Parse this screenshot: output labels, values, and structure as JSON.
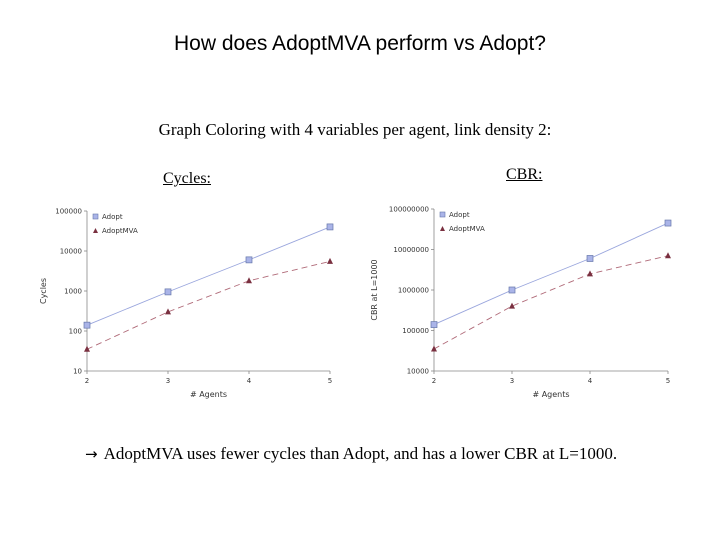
{
  "slide": {
    "title": "How does AdoptMVA perform vs Adopt?",
    "subtitle": "Graph Coloring with 4 variables per agent, link density 2:",
    "conclusion_arrow": "→",
    "conclusion": "AdoptMVA uses fewer cycles than Adopt, and has a lower CBR at L=1000."
  },
  "panels": {
    "cycles_label": "Cycles:",
    "cbr_label": "CBR:"
  },
  "colors": {
    "adopt": "#8899cc",
    "adopt_line": "#9aa6dd",
    "adoptmva": "#7a3040",
    "adoptmva_line": "#b06a78"
  },
  "chart_data": [
    {
      "type": "line",
      "scale": "log",
      "x": [
        2,
        3,
        4,
        5
      ],
      "xticks": [
        "2",
        "3",
        "4",
        "5"
      ],
      "yticks": [
        10,
        100,
        1000,
        10000,
        100000
      ],
      "ytick_labels": [
        "10",
        "100",
        "1000",
        "10000",
        "100000"
      ],
      "ylim": [
        10,
        100000
      ],
      "xlim": [
        2,
        5
      ],
      "xlabel": "# Agents",
      "ylabel": "Cycles",
      "legend_position": "top-left",
      "series": [
        {
          "name": "Adopt",
          "values": [
            140,
            950,
            6000,
            40000
          ],
          "marker": "square",
          "style": "solid"
        },
        {
          "name": "AdoptMVA",
          "values": [
            35,
            300,
            1800,
            5500
          ],
          "marker": "triangle",
          "style": "dashed"
        }
      ]
    },
    {
      "type": "line",
      "scale": "log",
      "x": [
        2,
        3,
        4,
        5
      ],
      "xticks": [
        "2",
        "3",
        "4",
        "5"
      ],
      "yticks": [
        10000,
        100000,
        1000000,
        10000000,
        100000000
      ],
      "ytick_labels": [
        "10000",
        "100000",
        "1000000",
        "10000000",
        "100000000"
      ],
      "ylim": [
        10000,
        100000000
      ],
      "xlim": [
        2,
        5
      ],
      "xlabel": "# Agents",
      "ylabel": "CBR at L=1000",
      "legend_position": "top-left",
      "series": [
        {
          "name": "Adopt",
          "values": [
            140000,
            1000000,
            6000000,
            45000000
          ],
          "marker": "square",
          "style": "solid"
        },
        {
          "name": "AdoptMVA",
          "values": [
            35000,
            400000,
            2500000,
            7000000
          ],
          "marker": "triangle",
          "style": "dashed"
        }
      ]
    }
  ]
}
